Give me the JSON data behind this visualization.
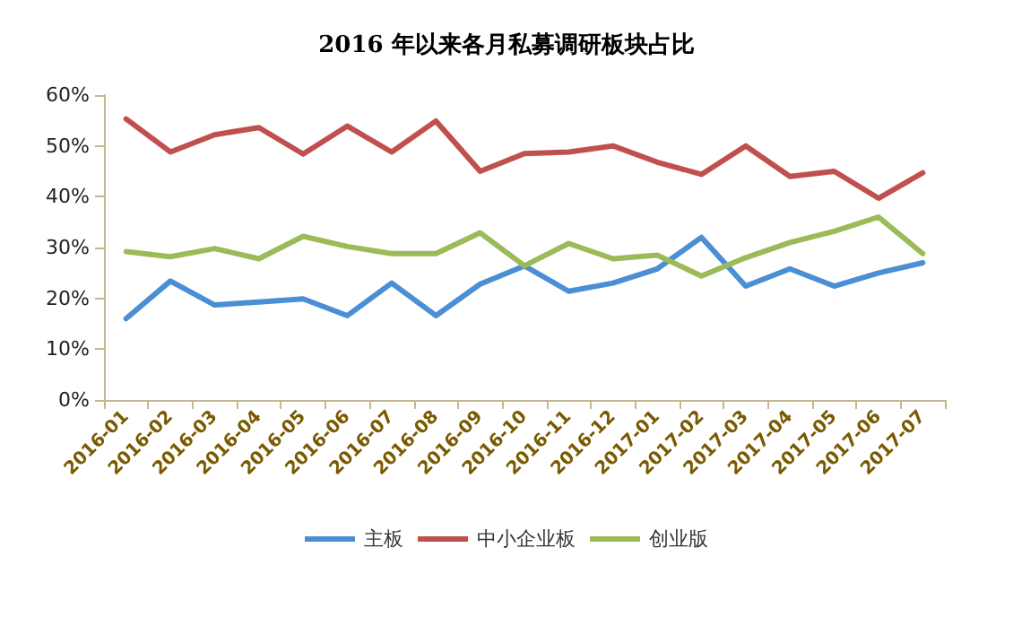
{
  "chart_data": {
    "type": "line",
    "title": "2016 年以来各月私募调研板块占比",
    "categories": [
      "2016-01",
      "2016-02",
      "2016-03",
      "2016-04",
      "2016-05",
      "2016-06",
      "2016-07",
      "2016-08",
      "2016-09",
      "2016-10",
      "2016-11",
      "2016-12",
      "2017-01",
      "2017-02",
      "2017-03",
      "2017-04",
      "2017-05",
      "2017-06",
      "2017-07"
    ],
    "series": [
      {
        "name": "主板",
        "color": "#4a8fd4",
        "values": [
          16,
          23.4,
          18.7,
          19.3,
          19.9,
          16.6,
          23,
          16.6,
          22.8,
          26.4,
          21.4,
          23,
          25.8,
          32,
          22.4,
          25.8,
          22.4,
          25,
          27
        ]
      },
      {
        "name": "中小企业板",
        "color": "#c0504d",
        "values": [
          55.3,
          48.8,
          52.2,
          53.6,
          48.4,
          53.9,
          48.8,
          54.9,
          45,
          48.5,
          48.8,
          50,
          46.8,
          44.4,
          50,
          44,
          45,
          39.7,
          44.7
        ]
      },
      {
        "name": "创业版",
        "color": "#9bbb59",
        "values": [
          29.2,
          28.2,
          29.8,
          27.8,
          32.2,
          30.2,
          28.8,
          28.8,
          32.9,
          26.4,
          30.8,
          27.8,
          28.5,
          24.4,
          28,
          31,
          33.2,
          36,
          28.8
        ]
      }
    ],
    "ylim": [
      0,
      60
    ],
    "yticks": [
      {
        "value": 0,
        "label": "0%"
      },
      {
        "value": 10,
        "label": "10%"
      },
      {
        "value": 20,
        "label": "20%"
      },
      {
        "value": 30,
        "label": "30%"
      },
      {
        "value": 40,
        "label": "40%"
      },
      {
        "value": 50,
        "label": "50%"
      },
      {
        "value": 60,
        "label": "60%"
      }
    ],
    "grid": false,
    "legend": "bottom",
    "marker": "none",
    "line_style": "solid"
  }
}
